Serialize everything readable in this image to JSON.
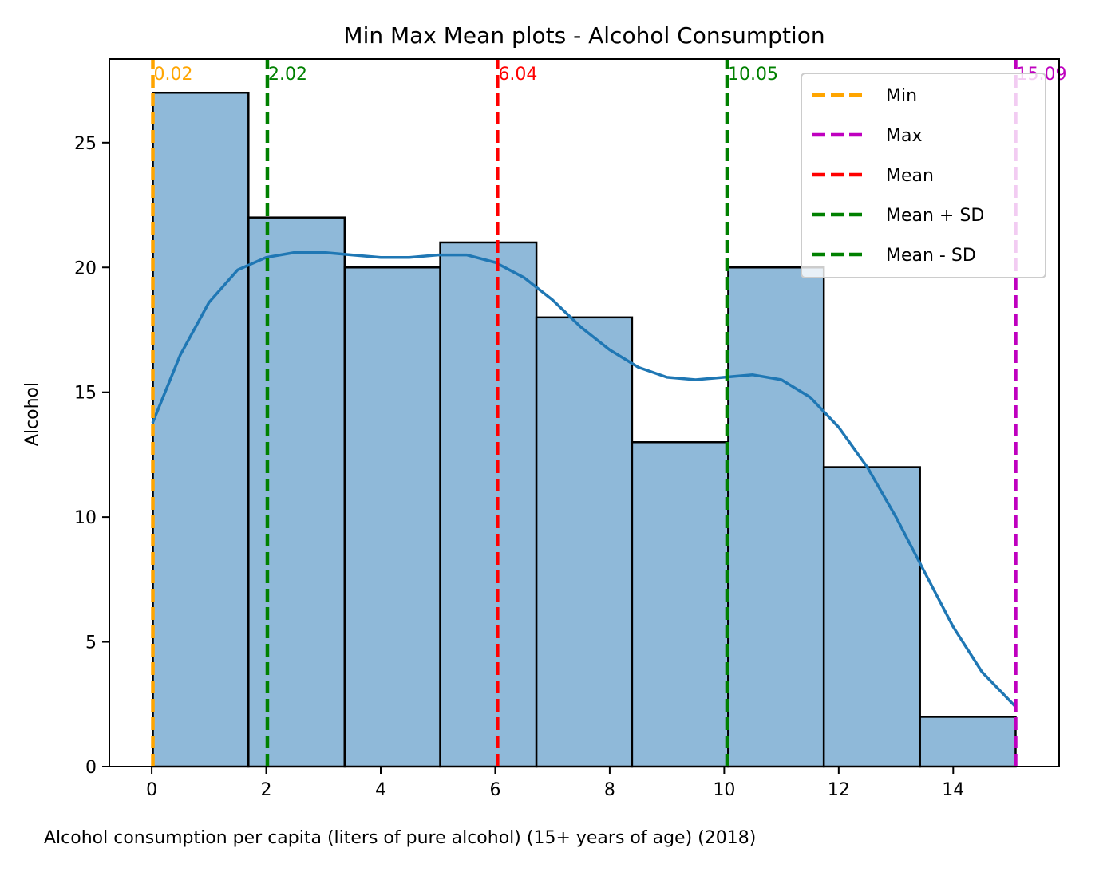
{
  "chart_data": {
    "type": "bar",
    "title": "Min Max Mean plots - Alcohol Consumption",
    "xlabel": "Alcohol consumption per capita (liters of pure alcohol) (15+ years of age) (2018)",
    "ylabel": "Alcohol",
    "xlim": [
      -0.74,
      15.85
    ],
    "ylim": [
      0,
      28.35
    ],
    "x_ticks": [
      0,
      2,
      4,
      6,
      8,
      10,
      12,
      14
    ],
    "y_ticks": [
      0,
      5,
      10,
      15,
      20,
      25
    ],
    "bins": [
      {
        "x0": 0.02,
        "x1": 1.69,
        "count": 27
      },
      {
        "x0": 1.69,
        "x1": 3.37,
        "count": 22
      },
      {
        "x0": 3.37,
        "x1": 5.04,
        "count": 20
      },
      {
        "x0": 5.04,
        "x1": 6.72,
        "count": 21
      },
      {
        "x0": 6.72,
        "x1": 8.39,
        "count": 18
      },
      {
        "x0": 8.39,
        "x1": 10.07,
        "count": 13
      },
      {
        "x0": 10.07,
        "x1": 11.74,
        "count": 20
      },
      {
        "x0": 11.74,
        "x1": 13.42,
        "count": 12
      },
      {
        "x0": 13.42,
        "x1": 15.09,
        "count": 2
      }
    ],
    "bar_color": "#8fb9d9",
    "kde": {
      "color": "#1f77b4",
      "points": [
        [
          0.02,
          13.8
        ],
        [
          0.5,
          16.5
        ],
        [
          1.0,
          18.6
        ],
        [
          1.5,
          19.9
        ],
        [
          2.0,
          20.4
        ],
        [
          2.5,
          20.6
        ],
        [
          3.0,
          20.6
        ],
        [
          3.5,
          20.5
        ],
        [
          4.0,
          20.4
        ],
        [
          4.5,
          20.4
        ],
        [
          5.0,
          20.5
        ],
        [
          5.5,
          20.5
        ],
        [
          6.0,
          20.2
        ],
        [
          6.5,
          19.6
        ],
        [
          7.0,
          18.7
        ],
        [
          7.5,
          17.6
        ],
        [
          8.0,
          16.7
        ],
        [
          8.5,
          16.0
        ],
        [
          9.0,
          15.6
        ],
        [
          9.5,
          15.5
        ],
        [
          10.0,
          15.6
        ],
        [
          10.5,
          15.7
        ],
        [
          11.0,
          15.5
        ],
        [
          11.5,
          14.8
        ],
        [
          12.0,
          13.6
        ],
        [
          12.5,
          12.0
        ],
        [
          13.0,
          10.0
        ],
        [
          13.5,
          7.8
        ],
        [
          14.0,
          5.6
        ],
        [
          14.5,
          3.8
        ],
        [
          15.09,
          2.4
        ]
      ]
    },
    "markers": [
      {
        "name": "Min",
        "value": 0.02,
        "label": "0.02",
        "color": "#ffa500"
      },
      {
        "name": "Max",
        "value": 15.09,
        "label": "15.09",
        "color": "#bf00bf"
      },
      {
        "name": "Mean",
        "value": 6.04,
        "label": "6.04",
        "color": "#ff0000"
      },
      {
        "name": "Mean + SD",
        "value": 10.05,
        "label": "10.05",
        "color": "#008000"
      },
      {
        "name": "Mean - SD",
        "value": 2.02,
        "label": "2.02",
        "color": "#008000"
      }
    ],
    "legend": {
      "position": "top-right",
      "entries": [
        {
          "label": "Min",
          "color": "#ffa500"
        },
        {
          "label": "Max",
          "color": "#bf00bf"
        },
        {
          "label": "Mean",
          "color": "#ff0000"
        },
        {
          "label": "Mean + SD",
          "color": "#008000"
        },
        {
          "label": "Mean - SD",
          "color": "#008000"
        }
      ]
    },
    "grid": false
  }
}
